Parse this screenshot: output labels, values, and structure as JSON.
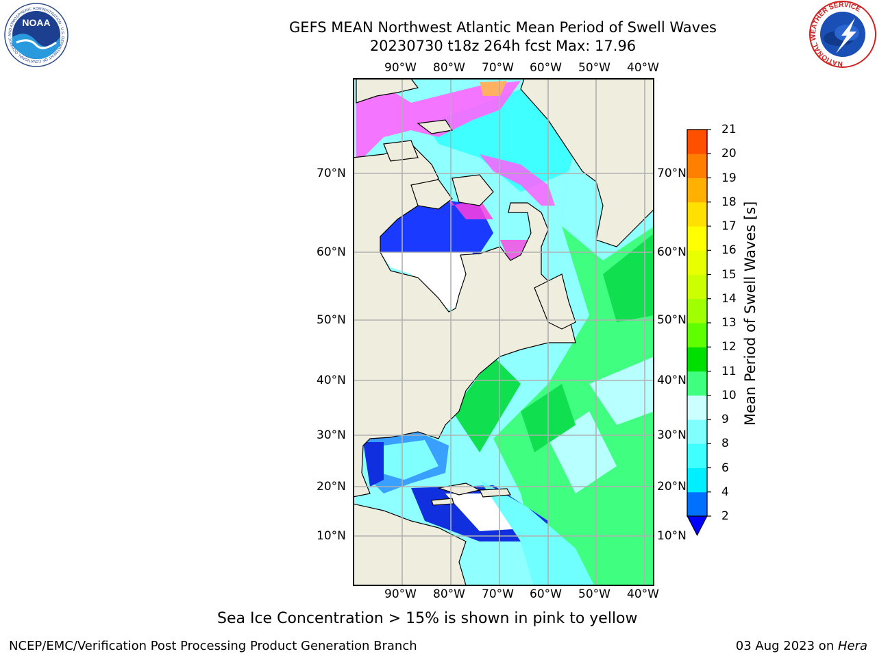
{
  "header": {
    "title_line1": "GEFS MEAN Northwest Atlantic Mean Period of Swell Waves",
    "title_line2": "20230730 t18z 264h fcst   Max: 17.96"
  },
  "logos": {
    "left": "NOAA",
    "left_ring_text": "NATIONAL OCEANIC AND ATMOSPHERIC ADMINISTRATION · U.S. DEPARTMENT OF COMMERCE",
    "right_ring_text": "NATIONAL WEATHER SERVICE"
  },
  "map": {
    "lon_labels": [
      "90°W",
      "80°W",
      "70°W",
      "60°W",
      "50°W",
      "40°W"
    ],
    "lat_labels": [
      "70°N",
      "60°N",
      "50°N",
      "40°N",
      "30°N",
      "20°N",
      "10°N"
    ],
    "colors": {
      "land": "#efedde",
      "grid": "#b0b0b0",
      "coast": "#000000"
    }
  },
  "colorbar": {
    "label": "Mean Period of Swell Waves [s]",
    "ticks": [
      "2",
      "4",
      "6",
      "8",
      "9",
      "10",
      "11",
      "12",
      "13",
      "14",
      "15",
      "16",
      "17",
      "18",
      "19",
      "20",
      "21"
    ],
    "colors": [
      "#0070ff",
      "#00efff",
      "#40ffff",
      "#80ffff",
      "#ccffff",
      "#40ff80",
      "#00e000",
      "#60ff00",
      "#a0ff00",
      "#ccff00",
      "#e8ff00",
      "#ffff00",
      "#ffe000",
      "#ffb000",
      "#ff8000",
      "#ff5000",
      "#ff2000",
      "#ff0000"
    ],
    "under_color": "#0000ff"
  },
  "caption": "Sea Ice Concentration > 15% is shown in pink to yellow",
  "footer": {
    "left": "NCEP/EMC/Verification Post Processing Product Generation Branch",
    "date": "03 Aug 2023 on ",
    "host": "Hera"
  }
}
